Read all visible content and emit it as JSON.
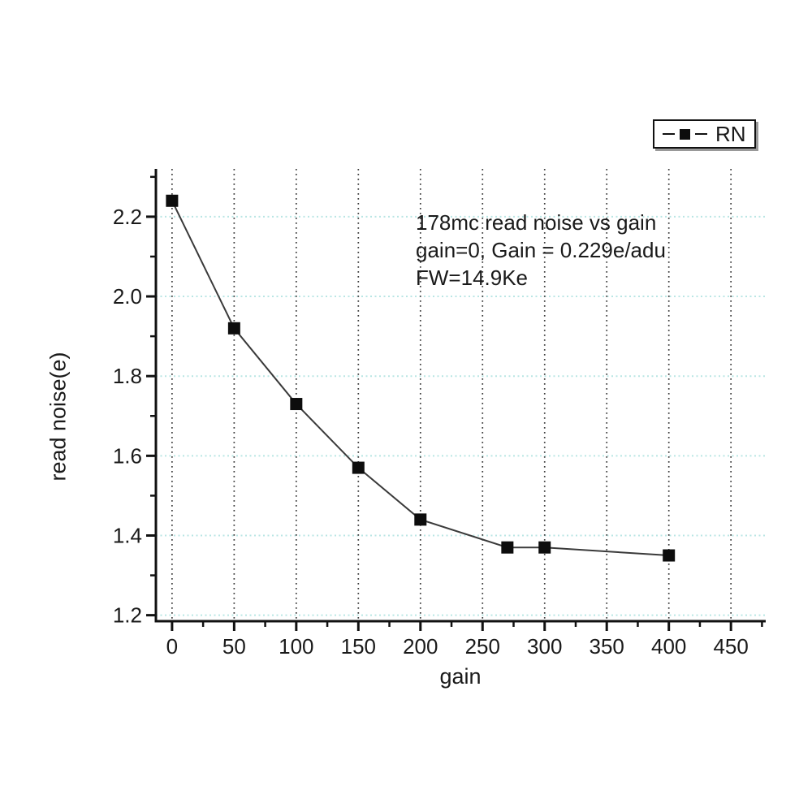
{
  "legend": {
    "label": "RN",
    "marker": "black-square",
    "border_color": "#111111",
    "shadow_color": "#999999"
  },
  "annotation": {
    "lines": [
      "178mc read noise vs gain",
      "gain=0, Gain = 0.229e/adu",
      "FW=14.9Ke"
    ]
  },
  "chart_data": {
    "type": "line",
    "title": "",
    "xlabel": "gain",
    "ylabel": "read noise(e)",
    "series": [
      {
        "name": "RN",
        "x": [
          0,
          50,
          100,
          150,
          200,
          270,
          300,
          400
        ],
        "y": [
          2.24,
          1.92,
          1.73,
          1.57,
          1.44,
          1.37,
          1.37,
          1.35
        ],
        "marker": "square",
        "marker_color": "#0d0d0d",
        "line_color": "#3a3a3a"
      }
    ],
    "xlim": [
      -13,
      478
    ],
    "ylim": [
      1.185,
      2.32
    ],
    "x_major_ticks": [
      0,
      50,
      100,
      150,
      200,
      250,
      300,
      350,
      400,
      450
    ],
    "x_minor_step": 25,
    "y_major_ticks": [
      1.2,
      1.4,
      1.6,
      1.8,
      2.0,
      2.2
    ],
    "y_minor_step": 0.1,
    "legend_position": "top-right-outside",
    "grid": {
      "vertical_color": "#3c3c3c",
      "horizontal_color": "#b9e6e4",
      "style": "dotted"
    },
    "axis_color": "#111111",
    "background": "#ffffff"
  }
}
